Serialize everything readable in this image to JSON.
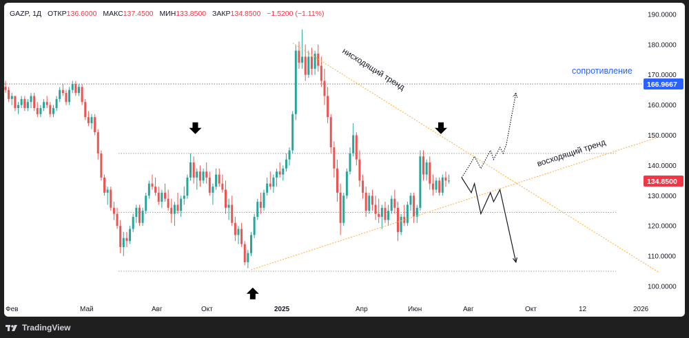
{
  "header": {
    "symbol": "GAZP",
    "interval": "1Д",
    "open_label": "ОТКР",
    "open_value": "136.6000",
    "high_label": "МАКС",
    "high_value": "137.4500",
    "low_label": "МИН",
    "low_value": "133.8500",
    "close_label": "ЗАКР",
    "close_value": "134.8500",
    "change_value": "−1.5200 (−1.11%)"
  },
  "footer": {
    "brand": "TradingView"
  },
  "colors": {
    "up": "#26a69a",
    "down": "#ef5350",
    "trend": "#ffb74d",
    "level": "#9e9e9e",
    "resistance": "#2962ff",
    "last_price": "#f23645"
  },
  "chart_data": {
    "type": "candlestick",
    "price_axis": {
      "ticks": [
        "190.0000",
        "180.0000",
        "170.0000",
        "160.0000",
        "150.0000",
        "140.0000",
        "130.0000",
        "120.0000",
        "110.0000",
        "100.0000"
      ],
      "range": [
        97,
        191
      ]
    },
    "time_axis": {
      "labels": [
        "Фев",
        "Май",
        "Авг",
        "Окт",
        "2025",
        "Апр",
        "Июн",
        "Авг",
        "Окт",
        "12",
        "2026"
      ],
      "bold": [
        "2025"
      ]
    },
    "series_ohlc": [
      [
        166,
        168,
        164,
        165
      ],
      [
        165,
        166,
        161,
        162
      ],
      [
        162,
        164,
        160,
        163
      ],
      [
        163,
        163,
        158,
        159
      ],
      [
        159,
        161,
        157,
        160
      ],
      [
        160,
        163,
        159,
        162
      ],
      [
        162,
        163,
        158,
        159
      ],
      [
        159,
        162,
        158,
        161
      ],
      [
        161,
        164,
        159,
        163
      ],
      [
        163,
        164,
        158,
        159
      ],
      [
        159,
        161,
        156,
        157
      ],
      [
        157,
        160,
        156,
        159
      ],
      [
        159,
        162,
        158,
        161
      ],
      [
        161,
        163,
        159,
        160
      ],
      [
        160,
        161,
        156,
        157
      ],
      [
        157,
        160,
        156,
        159
      ],
      [
        159,
        163,
        158,
        162
      ],
      [
        162,
        166,
        161,
        165
      ],
      [
        165,
        167,
        163,
        164
      ],
      [
        164,
        165,
        160,
        161
      ],
      [
        161,
        166,
        160,
        165
      ],
      [
        165,
        168,
        164,
        167
      ],
      [
        167,
        168,
        163,
        164
      ],
      [
        164,
        167,
        163,
        166
      ],
      [
        166,
        167,
        160,
        161
      ],
      [
        161,
        162,
        155,
        156
      ],
      [
        156,
        158,
        153,
        154
      ],
      [
        154,
        157,
        152,
        156
      ],
      [
        156,
        157,
        150,
        151
      ],
      [
        151,
        152,
        142,
        144
      ],
      [
        144,
        145,
        135,
        136
      ],
      [
        136,
        137,
        130,
        131
      ],
      [
        131,
        133,
        127,
        132
      ],
      [
        132,
        133,
        125,
        126
      ],
      [
        126,
        128,
        122,
        124
      ],
      [
        124,
        126,
        119,
        120
      ],
      [
        120,
        122,
        111,
        113
      ],
      [
        113,
        118,
        110,
        116
      ],
      [
        116,
        118,
        113,
        115
      ],
      [
        115,
        120,
        114,
        119
      ],
      [
        119,
        124,
        118,
        123
      ],
      [
        123,
        127,
        121,
        126
      ],
      [
        126,
        127,
        120,
        121
      ],
      [
        121,
        126,
        120,
        125
      ],
      [
        125,
        131,
        124,
        130
      ],
      [
        130,
        135,
        129,
        134
      ],
      [
        134,
        137,
        132,
        133
      ],
      [
        133,
        136,
        130,
        131
      ],
      [
        131,
        133,
        127,
        128
      ],
      [
        128,
        132,
        126,
        131
      ],
      [
        131,
        134,
        128,
        129
      ],
      [
        129,
        132,
        125,
        126
      ],
      [
        126,
        129,
        121,
        124
      ],
      [
        124,
        128,
        120,
        127
      ],
      [
        127,
        131,
        124,
        125
      ],
      [
        125,
        130,
        123,
        129
      ],
      [
        129,
        133,
        127,
        130
      ],
      [
        130,
        137,
        129,
        136
      ],
      [
        136,
        144,
        135,
        141
      ],
      [
        141,
        143,
        134,
        136
      ],
      [
        136,
        139,
        132,
        138
      ],
      [
        138,
        140,
        133,
        135
      ],
      [
        135,
        139,
        134,
        138
      ],
      [
        138,
        141,
        134,
        136
      ],
      [
        136,
        138,
        130,
        131
      ],
      [
        131,
        134,
        127,
        133
      ],
      [
        133,
        139,
        132,
        137
      ],
      [
        137,
        139,
        133,
        134
      ],
      [
        134,
        137,
        131,
        132
      ],
      [
        132,
        135,
        124,
        126
      ],
      [
        126,
        129,
        122,
        127
      ],
      [
        127,
        130,
        120,
        121
      ],
      [
        121,
        123,
        115,
        117
      ],
      [
        117,
        120,
        114,
        119
      ],
      [
        119,
        121,
        113,
        114
      ],
      [
        114,
        115,
        107,
        108
      ],
      [
        108,
        112,
        106,
        111
      ],
      [
        111,
        118,
        110,
        117
      ],
      [
        117,
        124,
        116,
        123
      ],
      [
        123,
        129,
        122,
        128
      ],
      [
        128,
        131,
        124,
        126
      ],
      [
        126,
        132,
        125,
        131
      ],
      [
        131,
        136,
        130,
        134
      ],
      [
        134,
        138,
        132,
        133
      ],
      [
        133,
        137,
        131,
        136
      ],
      [
        136,
        139,
        133,
        138
      ],
      [
        138,
        141,
        136,
        137
      ],
      [
        137,
        140,
        135,
        139
      ],
      [
        139,
        144,
        138,
        142
      ],
      [
        142,
        146,
        140,
        145
      ],
      [
        145,
        158,
        144,
        157
      ],
      [
        157,
        180,
        155,
        178
      ],
      [
        178,
        181,
        172,
        174
      ],
      [
        174,
        185,
        172,
        176
      ],
      [
        176,
        180,
        168,
        170
      ],
      [
        170,
        178,
        169,
        176
      ],
      [
        176,
        179,
        170,
        172
      ],
      [
        172,
        178,
        170,
        177
      ],
      [
        177,
        180,
        171,
        173
      ],
      [
        173,
        176,
        166,
        168
      ],
      [
        168,
        172,
        160,
        163
      ],
      [
        163,
        166,
        154,
        156
      ],
      [
        156,
        157,
        144,
        146
      ],
      [
        146,
        148,
        136,
        139
      ],
      [
        139,
        142,
        128,
        131
      ],
      [
        131,
        134,
        117,
        121
      ],
      [
        121,
        131,
        120,
        130
      ],
      [
        130,
        139,
        129,
        138
      ],
      [
        138,
        146,
        137,
        144
      ],
      [
        144,
        154,
        143,
        150
      ],
      [
        150,
        151,
        140,
        142
      ],
      [
        142,
        145,
        133,
        135
      ],
      [
        135,
        137,
        129,
        131
      ],
      [
        131,
        133,
        123,
        125
      ],
      [
        125,
        131,
        124,
        130
      ],
      [
        130,
        132,
        125,
        127
      ],
      [
        127,
        130,
        122,
        124
      ],
      [
        124,
        129,
        121,
        123
      ],
      [
        123,
        127,
        119,
        126
      ],
      [
        126,
        128,
        121,
        122
      ],
      [
        122,
        127,
        120,
        125
      ],
      [
        125,
        130,
        124,
        129
      ],
      [
        129,
        132,
        124,
        126
      ],
      [
        126,
        128,
        115,
        118
      ],
      [
        118,
        124,
        117,
        123
      ],
      [
        123,
        127,
        120,
        121
      ],
      [
        121,
        128,
        120,
        127
      ],
      [
        127,
        131,
        125,
        130
      ],
      [
        130,
        131,
        121,
        123
      ],
      [
        123,
        127,
        121,
        126
      ],
      [
        126,
        145,
        125,
        143
      ],
      [
        143,
        145,
        135,
        137
      ],
      [
        137,
        142,
        135,
        141
      ],
      [
        141,
        143,
        132,
        134
      ],
      [
        134,
        137,
        130,
        132
      ],
      [
        132,
        136,
        131,
        135
      ],
      [
        135,
        136,
        130,
        131
      ],
      [
        131,
        137,
        130,
        136
      ],
      [
        136,
        138,
        133,
        135
      ],
      [
        135,
        137,
        134,
        135
      ]
    ],
    "levels": [
      {
        "name": "support-low",
        "value": 105
      },
      {
        "name": "level-mid",
        "value": 124.5
      },
      {
        "name": "level-144",
        "value": 144
      },
      {
        "name": "resistance",
        "value": 166.9667
      }
    ],
    "resistance_label": "сопротивление",
    "resistance_value": "166.9667",
    "last_price_value": "134.8500",
    "trendlines": [
      {
        "name": "descending",
        "label": "нисходящий тренд",
        "from": [
          90,
          180.5
        ],
        "to": [
          205,
          104.5
        ]
      },
      {
        "name": "ascending",
        "label": "восходящий тренд",
        "from": [
          77,
          105.5
        ],
        "to": [
          205,
          149.5
        ]
      }
    ],
    "forecast_up": [
      [
        143,
        136
      ],
      [
        146,
        141
      ],
      [
        147,
        143
      ],
      [
        149,
        139
      ],
      [
        152,
        145
      ],
      [
        153,
        142
      ],
      [
        155,
        146
      ],
      [
        156,
        144
      ],
      [
        157,
        147
      ],
      [
        160,
        164
      ]
    ],
    "forecast_down": [
      [
        143,
        136
      ],
      [
        146,
        131
      ],
      [
        147,
        134
      ],
      [
        149,
        124
      ],
      [
        152,
        131
      ],
      [
        153,
        128
      ],
      [
        155,
        132
      ],
      [
        160,
        108
      ]
    ],
    "markers": [
      {
        "name": "arrow-down-1",
        "direction": "down",
        "x": 59.5,
        "price": 152
      },
      {
        "name": "arrow-up-1",
        "direction": "up",
        "x": 77.5,
        "price": 98
      },
      {
        "name": "arrow-down-2",
        "direction": "down",
        "x": 136.5,
        "price": 152
      }
    ],
    "grid": false,
    "legend": "top-left"
  }
}
